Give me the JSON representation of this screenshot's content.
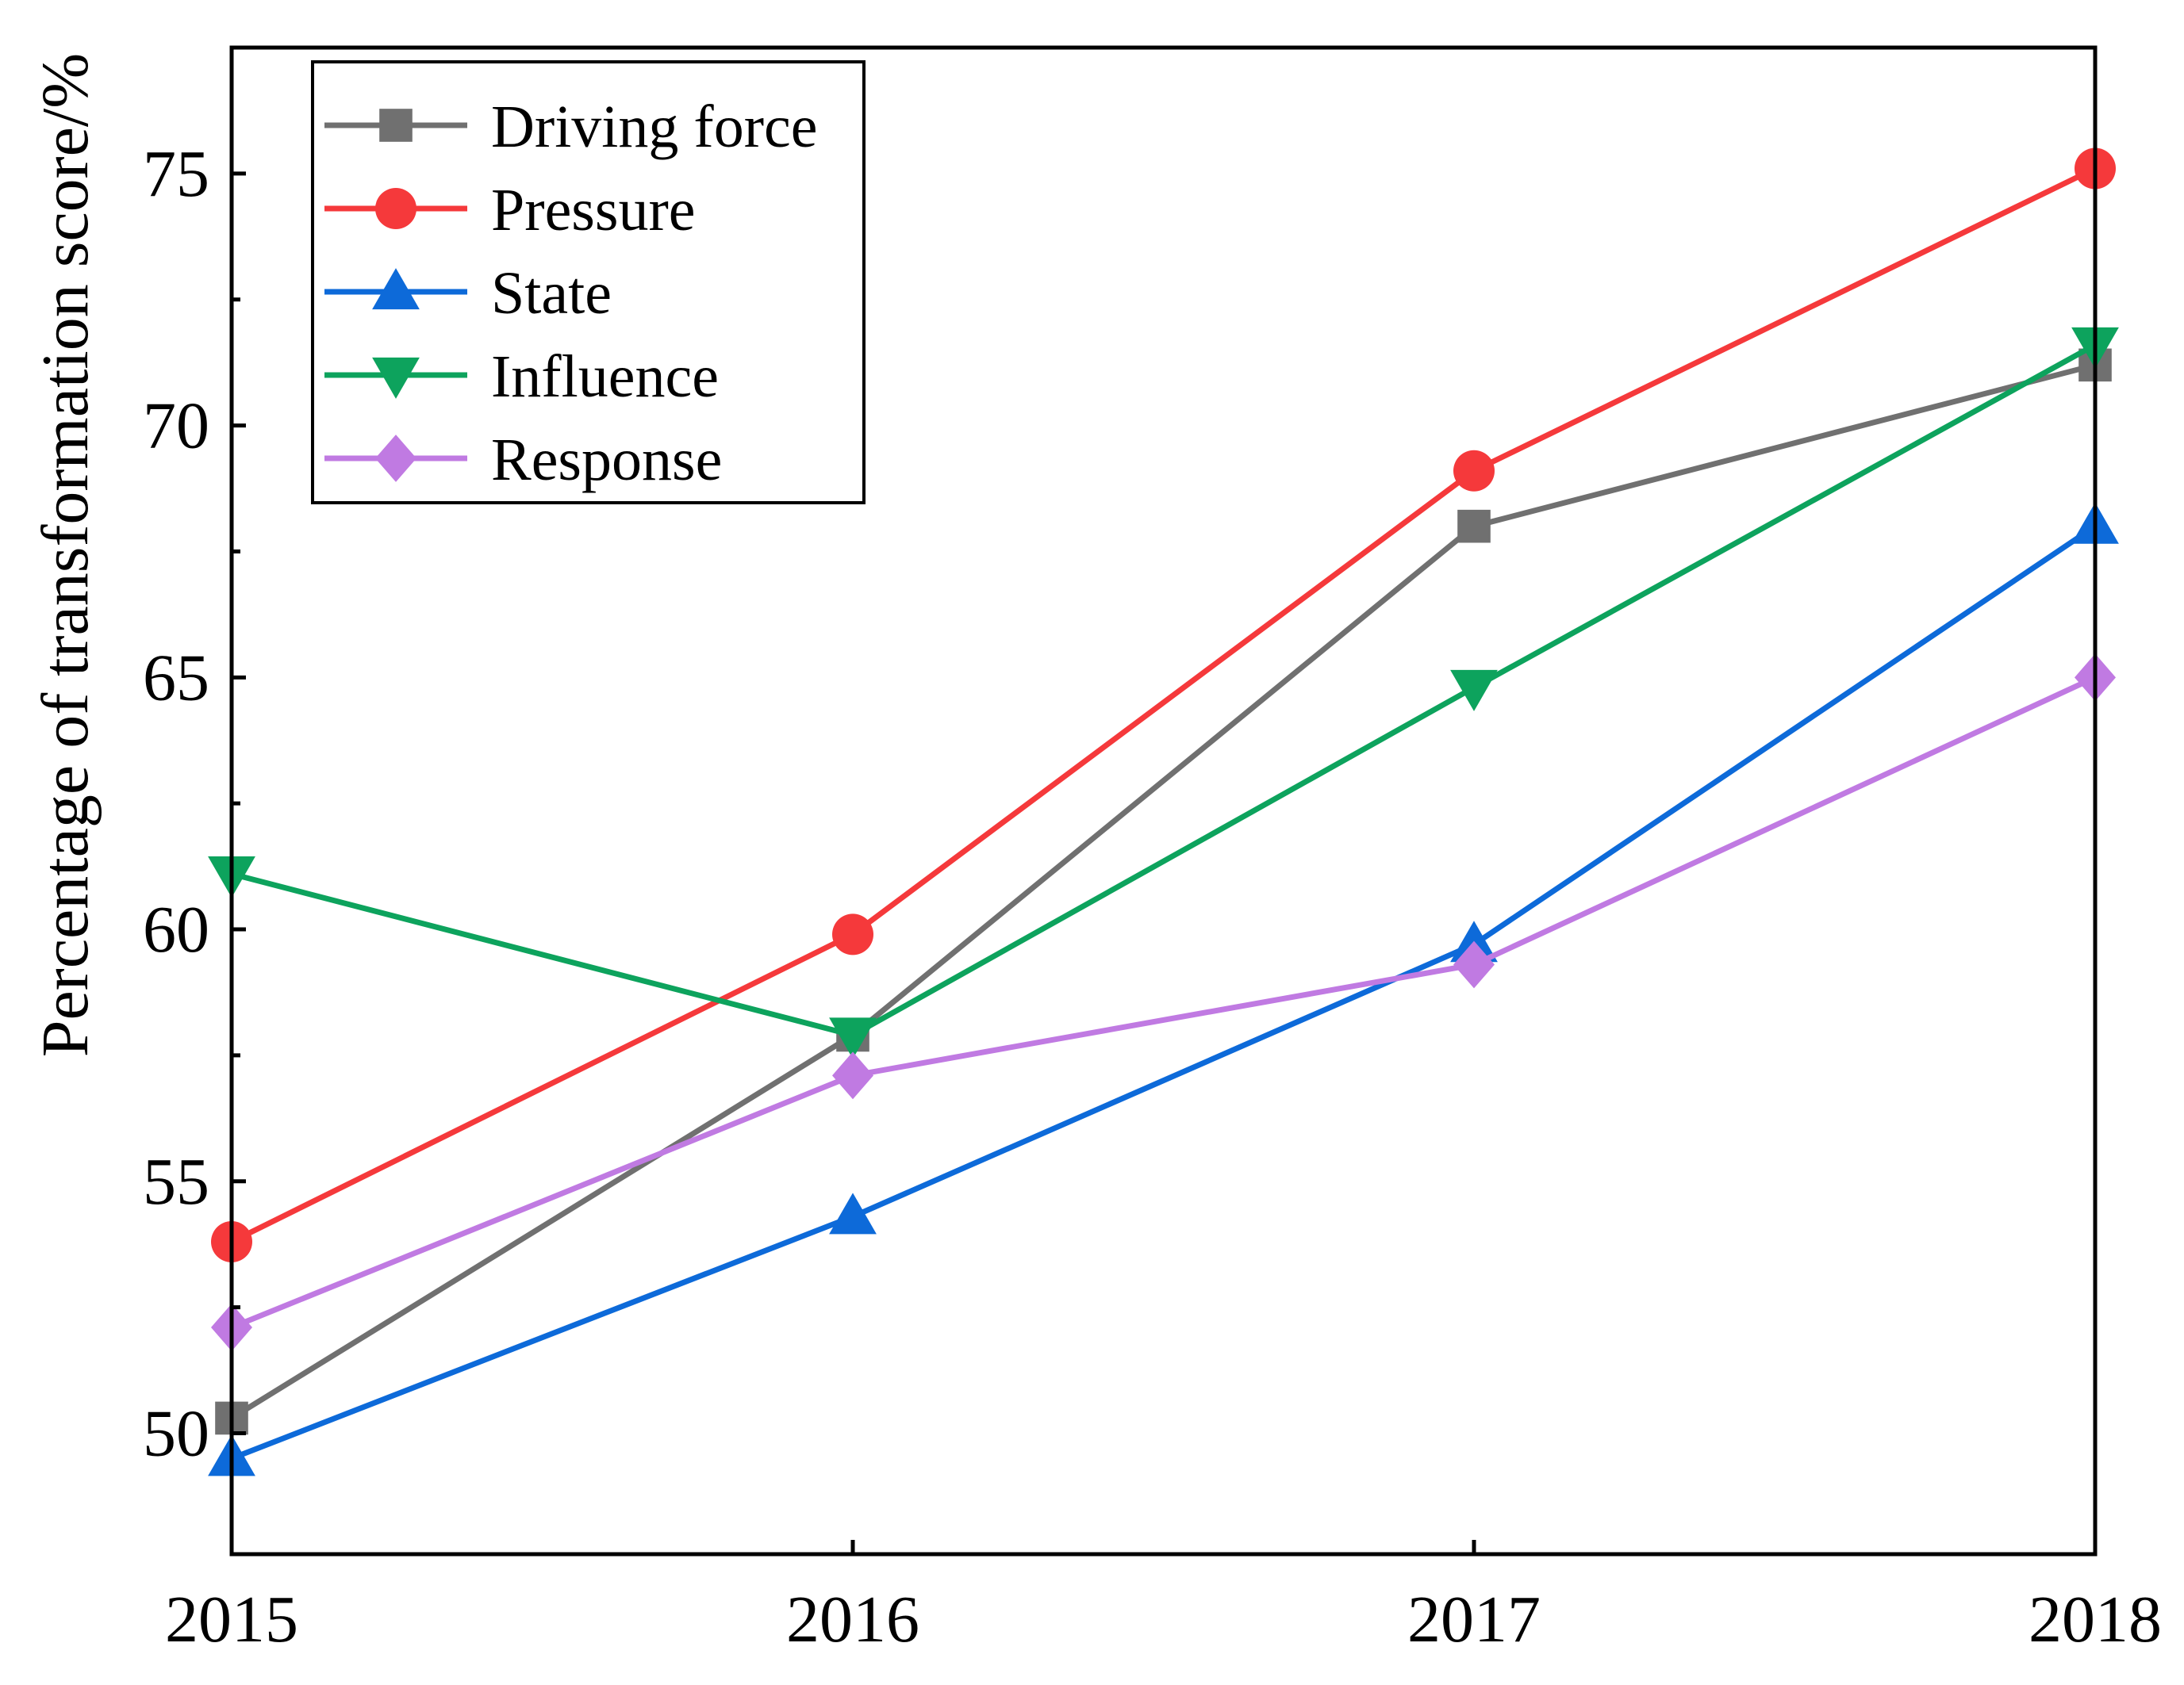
{
  "chart_data": {
    "type": "line",
    "title": "",
    "xlabel": "",
    "ylabel": "Percentage of transformation score/%",
    "x": [
      2015,
      2016,
      2017,
      2018
    ],
    "x_tick_labels": [
      "2015",
      "2016",
      "2017",
      "2018"
    ],
    "ylim": [
      47.6,
      77.5
    ],
    "y_ticks": [
      50,
      55,
      60,
      65,
      70,
      75
    ],
    "y_tick_labels": [
      "50",
      "55",
      "60",
      "65",
      "70",
      "75"
    ],
    "y_minor_ticks": [
      47.5,
      52.5,
      57.5,
      62.5,
      67.5,
      72.5
    ],
    "grid": false,
    "legend_position": "top-left",
    "series": [
      {
        "name": "Driving force",
        "marker": "square",
        "color": "#707070",
        "values": [
          50.3,
          57.9,
          68.0,
          71.2
        ]
      },
      {
        "name": "Pressure",
        "marker": "circle",
        "color": "#f5393b",
        "values": [
          53.8,
          59.9,
          69.1,
          75.1
        ]
      },
      {
        "name": "State",
        "marker": "triangle-up",
        "color": "#0d6ad9",
        "values": [
          49.5,
          54.3,
          59.7,
          68.0
        ]
      },
      {
        "name": "Influence",
        "marker": "triangle-down",
        "color": "#0da35d",
        "values": [
          61.1,
          57.9,
          64.8,
          71.6
        ]
      },
      {
        "name": "Response",
        "marker": "diamond",
        "color": "#c07ae2",
        "values": [
          52.1,
          57.1,
          59.3,
          65.0
        ]
      }
    ]
  }
}
